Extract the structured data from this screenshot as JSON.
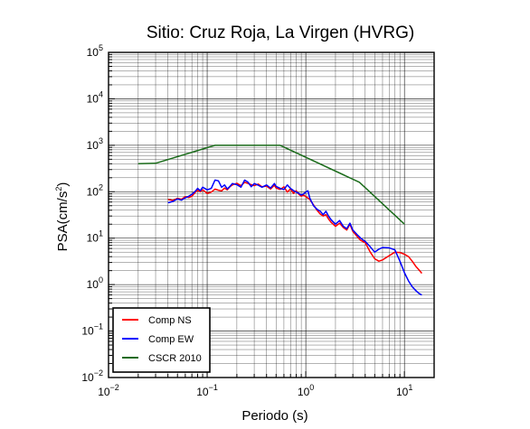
{
  "chart_data": {
    "type": "line",
    "title": "Sitio: Cruz Roja, La Virgen (HVRG)",
    "xlabel": "Periodo (s)",
    "ylabel": "PSA(cm/s²)",
    "ylabel_base": "PSA(cm/s",
    "ylabel_sup": "2",
    "ylabel_close": ")",
    "x_scale": "log",
    "y_scale": "log",
    "xlim": [
      0.01,
      20
    ],
    "ylim": [
      0.01,
      100000
    ],
    "grid": true,
    "legend_position": "bottom-left",
    "x_ticks": [
      {
        "base": "10",
        "exp": "−2",
        "value": 0.01
      },
      {
        "base": "10",
        "exp": "−1",
        "value": 0.1
      },
      {
        "base": "10",
        "exp": "0",
        "value": 1
      },
      {
        "base": "10",
        "exp": "1",
        "value": 10
      }
    ],
    "y_ticks": [
      {
        "base": "10",
        "exp": "−2",
        "value": 0.01
      },
      {
        "base": "10",
        "exp": "−1",
        "value": 0.1
      },
      {
        "base": "10",
        "exp": "0",
        "value": 1
      },
      {
        "base": "10",
        "exp": "1",
        "value": 10
      },
      {
        "base": "10",
        "exp": "2",
        "value": 100
      },
      {
        "base": "10",
        "exp": "3",
        "value": 1000
      },
      {
        "base": "10",
        "exp": "4",
        "value": 10000
      },
      {
        "base": "10",
        "exp": "5",
        "value": 100000
      }
    ],
    "series": [
      {
        "name": "Comp NS",
        "color": "#ff0000",
        "points": [
          [
            0.04,
            68
          ],
          [
            0.045,
            65
          ],
          [
            0.05,
            72
          ],
          [
            0.055,
            69
          ],
          [
            0.06,
            78
          ],
          [
            0.065,
            75
          ],
          [
            0.07,
            80
          ],
          [
            0.075,
            95
          ],
          [
            0.08,
            108
          ],
          [
            0.085,
            100
          ],
          [
            0.09,
            110
          ],
          [
            0.1,
            92
          ],
          [
            0.11,
            98
          ],
          [
            0.12,
            114
          ],
          [
            0.13,
            108
          ],
          [
            0.14,
            104
          ],
          [
            0.15,
            120
          ],
          [
            0.16,
            110
          ],
          [
            0.17,
            128
          ],
          [
            0.18,
            140
          ],
          [
            0.2,
            152
          ],
          [
            0.22,
            135
          ],
          [
            0.24,
            160
          ],
          [
            0.26,
            150
          ],
          [
            0.28,
            142
          ],
          [
            0.3,
            135
          ],
          [
            0.33,
            146
          ],
          [
            0.36,
            128
          ],
          [
            0.4,
            132
          ],
          [
            0.44,
            115
          ],
          [
            0.48,
            138
          ],
          [
            0.5,
            120
          ],
          [
            0.55,
            112
          ],
          [
            0.6,
            128
          ],
          [
            0.65,
            98
          ],
          [
            0.7,
            115
          ],
          [
            0.75,
            92
          ],
          [
            0.8,
            105
          ],
          [
            0.85,
            88
          ],
          [
            0.9,
            80
          ],
          [
            0.95,
            85
          ],
          [
            1.0,
            78
          ],
          [
            1.1,
            68
          ],
          [
            1.2,
            52
          ],
          [
            1.3,
            40
          ],
          [
            1.4,
            33
          ],
          [
            1.5,
            30
          ],
          [
            1.6,
            32
          ],
          [
            1.7,
            26
          ],
          [
            1.8,
            22
          ],
          [
            2.0,
            18
          ],
          [
            2.2,
            21
          ],
          [
            2.4,
            17
          ],
          [
            2.6,
            15
          ],
          [
            2.8,
            20
          ],
          [
            3.0,
            14
          ],
          [
            3.3,
            11
          ],
          [
            3.6,
            9
          ],
          [
            4.0,
            8
          ],
          [
            4.5,
            5
          ],
          [
            5.0,
            3.6
          ],
          [
            5.5,
            3.2
          ],
          [
            6.0,
            3.4
          ],
          [
            7.0,
            4.2
          ],
          [
            8.0,
            5.0
          ],
          [
            9.0,
            4.9
          ],
          [
            10.0,
            4.5
          ],
          [
            11.0,
            4.0
          ],
          [
            12.0,
            3.2
          ],
          [
            13.0,
            2.5
          ],
          [
            14.0,
            2.1
          ],
          [
            15.0,
            1.75
          ]
        ]
      },
      {
        "name": "Comp EW",
        "color": "#0000ff",
        "points": [
          [
            0.04,
            58
          ],
          [
            0.045,
            62
          ],
          [
            0.05,
            70
          ],
          [
            0.055,
            66
          ],
          [
            0.06,
            74
          ],
          [
            0.065,
            80
          ],
          [
            0.07,
            88
          ],
          [
            0.075,
            100
          ],
          [
            0.08,
            118
          ],
          [
            0.085,
            105
          ],
          [
            0.09,
            125
          ],
          [
            0.1,
            110
          ],
          [
            0.11,
            118
          ],
          [
            0.12,
            178
          ],
          [
            0.13,
            172
          ],
          [
            0.14,
            125
          ],
          [
            0.15,
            140
          ],
          [
            0.16,
            115
          ],
          [
            0.17,
            130
          ],
          [
            0.18,
            150
          ],
          [
            0.2,
            142
          ],
          [
            0.22,
            125
          ],
          [
            0.24,
            178
          ],
          [
            0.26,
            160
          ],
          [
            0.28,
            128
          ],
          [
            0.3,
            150
          ],
          [
            0.33,
            138
          ],
          [
            0.36,
            125
          ],
          [
            0.4,
            140
          ],
          [
            0.44,
            120
          ],
          [
            0.48,
            150
          ],
          [
            0.5,
            130
          ],
          [
            0.55,
            118
          ],
          [
            0.6,
            112
          ],
          [
            0.65,
            140
          ],
          [
            0.7,
            118
          ],
          [
            0.75,
            106
          ],
          [
            0.8,
            98
          ],
          [
            0.85,
            92
          ],
          [
            0.9,
            85
          ],
          [
            0.95,
            90
          ],
          [
            1.0,
            98
          ],
          [
            1.05,
            105
          ],
          [
            1.1,
            72
          ],
          [
            1.2,
            50
          ],
          [
            1.3,
            42
          ],
          [
            1.4,
            38
          ],
          [
            1.5,
            32
          ],
          [
            1.6,
            38
          ],
          [
            1.7,
            30
          ],
          [
            1.8,
            25
          ],
          [
            2.0,
            20
          ],
          [
            2.2,
            24
          ],
          [
            2.4,
            18
          ],
          [
            2.6,
            16
          ],
          [
            2.8,
            21
          ],
          [
            3.0,
            15
          ],
          [
            3.3,
            12
          ],
          [
            3.6,
            10
          ],
          [
            4.0,
            8.5
          ],
          [
            4.5,
            6.5
          ],
          [
            5.0,
            5.0
          ],
          [
            5.5,
            5.8
          ],
          [
            6.0,
            6.3
          ],
          [
            7.0,
            6.2
          ],
          [
            8.0,
            5.6
          ],
          [
            9.0,
            3.2
          ],
          [
            10.0,
            1.8
          ],
          [
            11.0,
            1.2
          ],
          [
            12.0,
            0.9
          ],
          [
            13.0,
            0.75
          ],
          [
            14.0,
            0.65
          ],
          [
            15.0,
            0.6
          ]
        ]
      },
      {
        "name": "CSCR 2010",
        "color": "#1a6b1a",
        "points": [
          [
            0.02,
            400
          ],
          [
            0.03,
            410
          ],
          [
            0.12,
            1000
          ],
          [
            0.55,
            1000
          ],
          [
            3.5,
            160
          ],
          [
            10.0,
            20
          ]
        ]
      }
    ]
  }
}
